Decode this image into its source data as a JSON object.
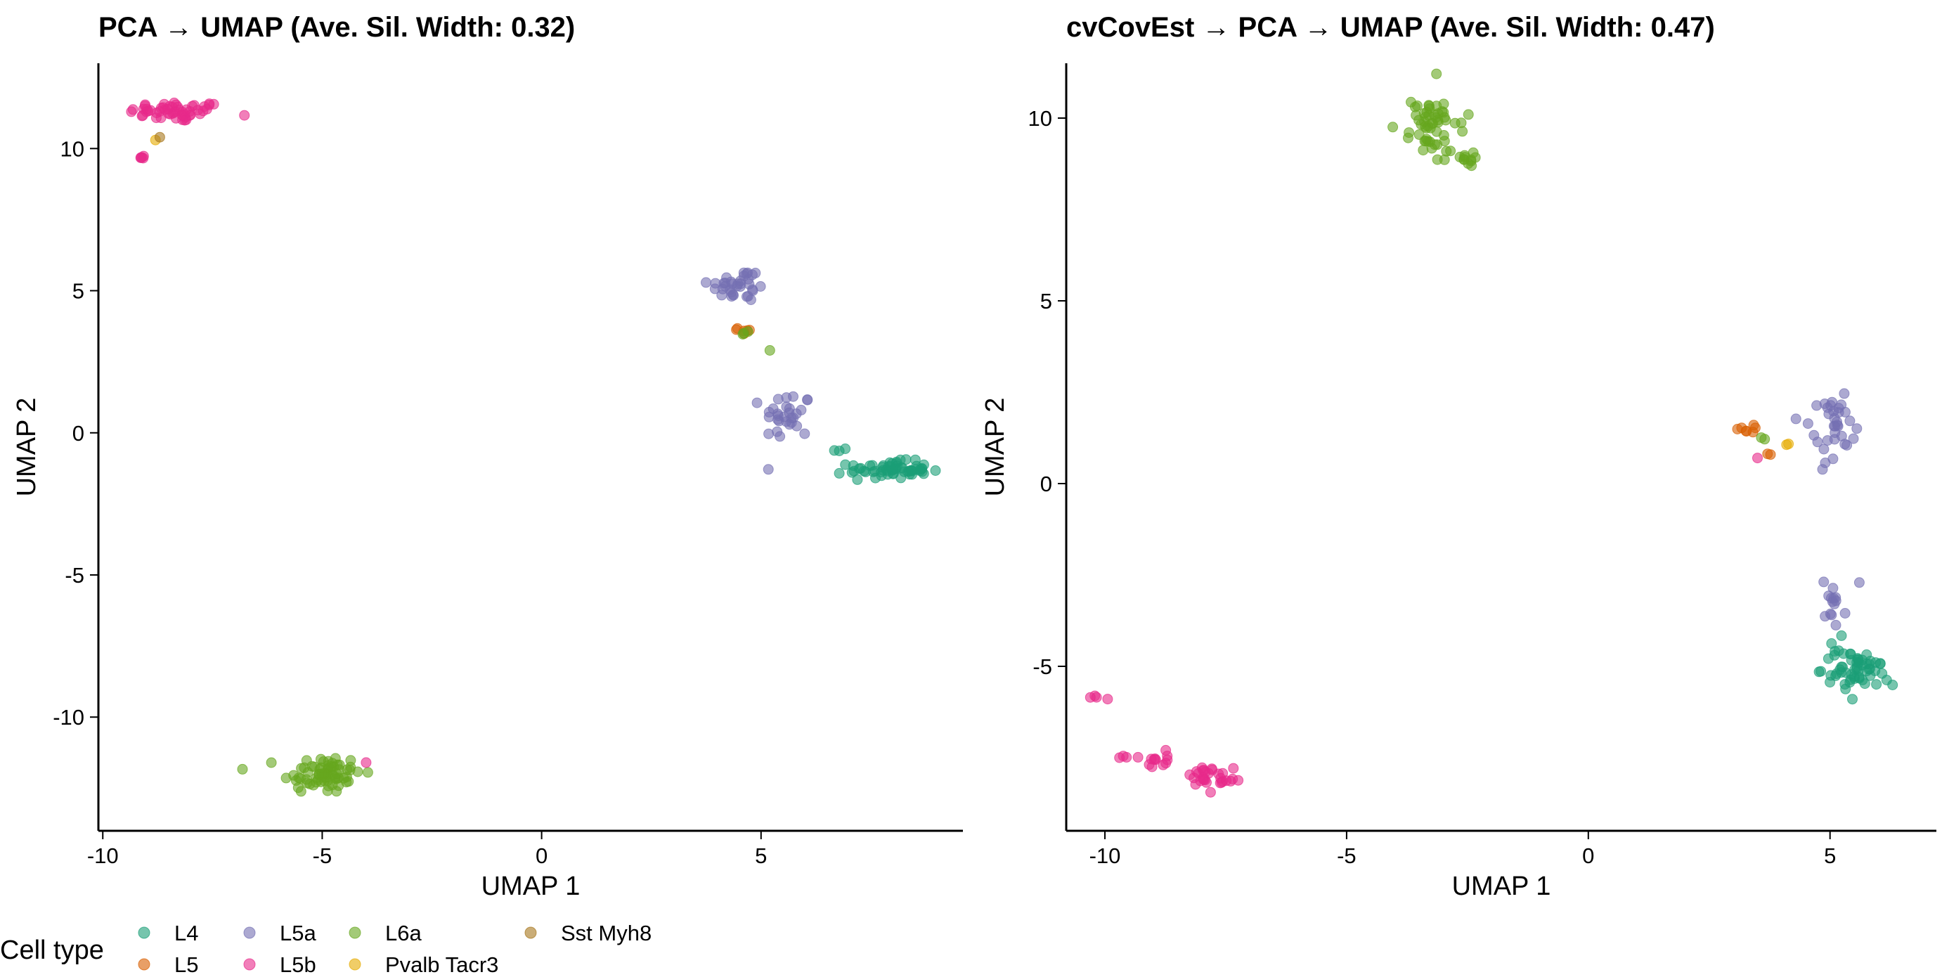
{
  "legend": {
    "title": "Cell type",
    "entries": [
      {
        "label": "L4",
        "color": "#1B9E77"
      },
      {
        "label": "L5",
        "color": "#D95F02"
      },
      {
        "label": "L5a",
        "color": "#7570B3"
      },
      {
        "label": "L5b",
        "color": "#E7298A"
      },
      {
        "label": "L6a",
        "color": "#66A61E"
      },
      {
        "label": "Pvalb Tacr3",
        "color": "#E6AB02"
      },
      {
        "label": "Sst Myh8",
        "color": "#A6761D"
      }
    ]
  },
  "chart_data": [
    {
      "type": "scatter",
      "title": "PCA → UMAP (Ave. Sil. Width: 0.32)",
      "xlabel": "UMAP 1",
      "ylabel": "UMAP 2",
      "xlim": [
        -10.1,
        9.6
      ],
      "ylim": [
        -14.0,
        13.0
      ],
      "xticks": [
        -10,
        -5,
        0,
        5
      ],
      "xtick_labels": [
        "-10",
        "-5",
        "0",
        "5"
      ],
      "yticks": [
        -10,
        -5,
        0,
        5,
        10
      ],
      "ytick_labels": [
        "-10",
        "-5",
        "0",
        "5",
        "10"
      ],
      "grid": false,
      "clusters": [
        {
          "type": "L5b",
          "cx": -8.3,
          "cy": 11.3,
          "sx": 0.55,
          "sy": 0.18,
          "n": 55
        },
        {
          "type": "L5b",
          "cx": -9.1,
          "cy": 9.7,
          "sx": 0.05,
          "sy": 0.04,
          "n": 5
        },
        {
          "type": "Pvalb Tacr3",
          "cx": -8.8,
          "cy": 10.3,
          "sx": 0.0,
          "sy": 0.0,
          "n": 1
        },
        {
          "type": "Sst Myh8",
          "cx": -8.7,
          "cy": 10.4,
          "sx": 0.0,
          "sy": 0.0,
          "n": 1
        },
        {
          "type": "L6a",
          "cx": -5.0,
          "cy": -12.0,
          "sx": 0.45,
          "sy": 0.35,
          "n": 70
        },
        {
          "type": "L5b",
          "cx": -4.0,
          "cy": -11.6,
          "sx": 0.0,
          "sy": 0.0,
          "n": 1
        },
        {
          "type": "L5a",
          "cx": 4.5,
          "cy": 5.2,
          "sx": 0.35,
          "sy": 0.3,
          "n": 35
        },
        {
          "type": "L5",
          "cx": 4.6,
          "cy": 3.6,
          "sx": 0.1,
          "sy": 0.08,
          "n": 6
        },
        {
          "type": "L6a",
          "cx": 4.7,
          "cy": 3.5,
          "sx": 0.1,
          "sy": 0.08,
          "n": 3
        },
        {
          "type": "L6a",
          "cx": 5.2,
          "cy": 2.9,
          "sx": 0.0,
          "sy": 0.0,
          "n": 1
        },
        {
          "type": "L5a",
          "cx": 5.6,
          "cy": 0.6,
          "sx": 0.28,
          "sy": 0.45,
          "n": 30
        },
        {
          "type": "L4",
          "cx": 6.9,
          "cy": -0.6,
          "sx": 0.15,
          "sy": 0.05,
          "n": 3
        },
        {
          "type": "L4",
          "cx": 7.9,
          "cy": -1.3,
          "sx": 0.45,
          "sy": 0.15,
          "n": 60
        }
      ]
    },
    {
      "type": "scatter",
      "title": "cvCovEst → PCA → UMAP (Ave. Sil. Width: 0.47)",
      "xlabel": "UMAP 1",
      "ylabel": "UMAP 2",
      "xlim": [
        -10.8,
        7.2
      ],
      "ylim": [
        -9.5,
        11.5
      ],
      "xticks": [
        -10,
        -5,
        0,
        5
      ],
      "xtick_labels": [
        "-10",
        "-5",
        "0",
        "5"
      ],
      "yticks": [
        -5,
        0,
        5,
        10
      ],
      "ytick_labels": [
        "-5",
        "0",
        "5",
        "10"
      ],
      "grid": false,
      "clusters": [
        {
          "type": "L6a",
          "cx": -3.2,
          "cy": 9.8,
          "sx": 0.35,
          "sy": 0.4,
          "n": 55
        },
        {
          "type": "L6a",
          "cx": -2.6,
          "cy": 8.9,
          "sx": 0.15,
          "sy": 0.12,
          "n": 12
        },
        {
          "type": "L5b",
          "cx": -10.1,
          "cy": -5.9,
          "sx": 0.08,
          "sy": 0.06,
          "n": 4
        },
        {
          "type": "L5b",
          "cx": -9.2,
          "cy": -7.5,
          "sx": 0.3,
          "sy": 0.12,
          "n": 15
        },
        {
          "type": "L5b",
          "cx": -7.8,
          "cy": -8.0,
          "sx": 0.25,
          "sy": 0.15,
          "n": 30
        },
        {
          "type": "L5",
          "cx": 3.3,
          "cy": 1.4,
          "sx": 0.12,
          "sy": 0.1,
          "n": 7
        },
        {
          "type": "L5",
          "cx": 3.8,
          "cy": 0.8,
          "sx": 0.05,
          "sy": 0.05,
          "n": 2
        },
        {
          "type": "L6a",
          "cx": 3.6,
          "cy": 1.2,
          "sx": 0.05,
          "sy": 0.05,
          "n": 2
        },
        {
          "type": "Pvalb Tacr3",
          "cx": 4.05,
          "cy": 1.05,
          "sx": 0.04,
          "sy": 0.04,
          "n": 2
        },
        {
          "type": "L5b",
          "cx": 3.5,
          "cy": 0.7,
          "sx": 0.0,
          "sy": 0.0,
          "n": 1
        },
        {
          "type": "L5a",
          "cx": 5.0,
          "cy": 1.5,
          "sx": 0.22,
          "sy": 0.45,
          "n": 35
        },
        {
          "type": "L5a",
          "cx": 5.0,
          "cy": -3.2,
          "sx": 0.15,
          "sy": 0.35,
          "n": 15
        },
        {
          "type": "L4",
          "cx": 5.5,
          "cy": -5.1,
          "sx": 0.35,
          "sy": 0.3,
          "n": 60
        }
      ]
    }
  ]
}
